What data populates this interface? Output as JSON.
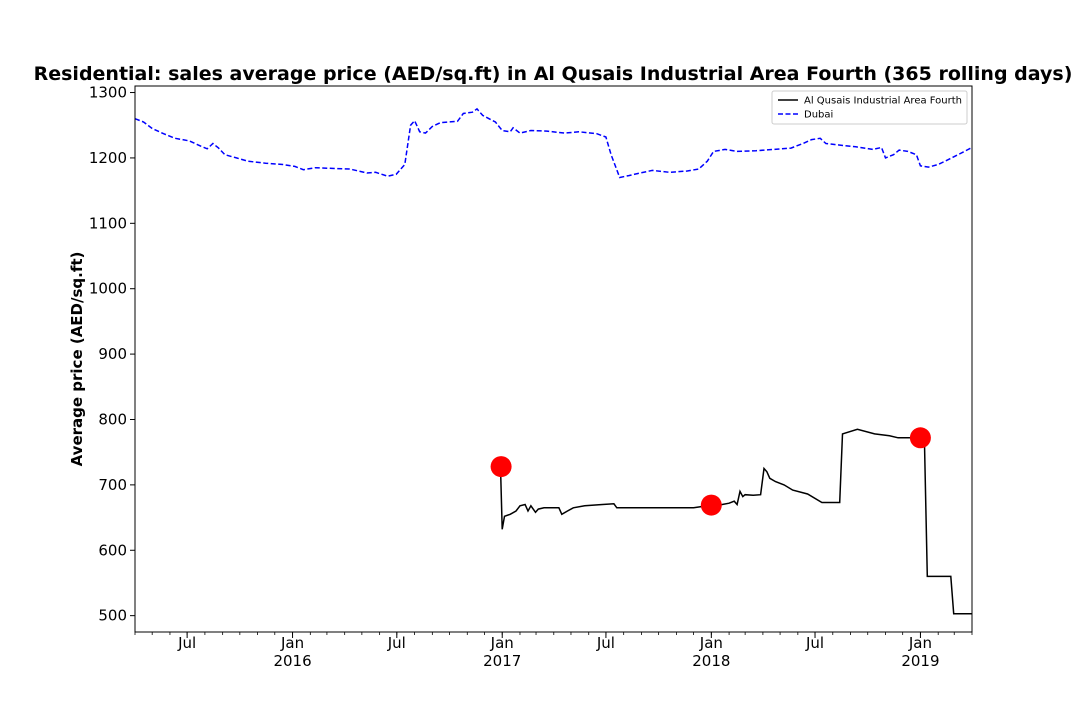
{
  "chart_data": {
    "type": "line",
    "title": "Residential: sales average price (AED/sq.ft) in Al Qusais Industrial Area Fourth (365 rolling days)",
    "xlabel": "",
    "ylabel": "Average price (AED/sq.ft)",
    "xlim": [
      "2015-04-01",
      "2019-04-01"
    ],
    "ylim": [
      475,
      1310
    ],
    "yticks": [
      500,
      600,
      700,
      800,
      900,
      1000,
      1100,
      1200,
      1300
    ],
    "xticks": [
      {
        "date": "2015-07-01",
        "label": "Jul",
        "sublabel": ""
      },
      {
        "date": "2016-01-01",
        "label": "Jan",
        "sublabel": "2016"
      },
      {
        "date": "2016-07-01",
        "label": "Jul",
        "sublabel": ""
      },
      {
        "date": "2017-01-01",
        "label": "Jan",
        "sublabel": "2017"
      },
      {
        "date": "2017-07-01",
        "label": "Jul",
        "sublabel": ""
      },
      {
        "date": "2018-01-01",
        "label": "Jan",
        "sublabel": "2018"
      },
      {
        "date": "2018-07-01",
        "label": "Jul",
        "sublabel": ""
      },
      {
        "date": "2019-01-01",
        "label": "Jan",
        "sublabel": "2019"
      }
    ],
    "grid": false,
    "legend_position": "top-right",
    "series": [
      {
        "name": "Al Qusais Industrial Area Fourth",
        "color": "#000000",
        "style": "solid",
        "points": [
          [
            "2016-12-29",
            728
          ],
          [
            "2017-01-01",
            632
          ],
          [
            "2017-01-05",
            652
          ],
          [
            "2017-01-15",
            655
          ],
          [
            "2017-01-25",
            660
          ],
          [
            "2017-02-01",
            668
          ],
          [
            "2017-02-10",
            670
          ],
          [
            "2017-02-15",
            660
          ],
          [
            "2017-02-20",
            668
          ],
          [
            "2017-02-28",
            658
          ],
          [
            "2017-03-05",
            663
          ],
          [
            "2017-03-15",
            665
          ],
          [
            "2017-04-10",
            665
          ],
          [
            "2017-04-15",
            655
          ],
          [
            "2017-04-25",
            660
          ],
          [
            "2017-05-05",
            665
          ],
          [
            "2017-05-25",
            668
          ],
          [
            "2017-06-25",
            670
          ],
          [
            "2017-07-15",
            671
          ],
          [
            "2017-07-20",
            665
          ],
          [
            "2017-12-01",
            665
          ],
          [
            "2017-12-25",
            668
          ],
          [
            "2018-01-20",
            670
          ],
          [
            "2018-02-01",
            672
          ],
          [
            "2018-02-10",
            675
          ],
          [
            "2018-02-15",
            670
          ],
          [
            "2018-02-20",
            690
          ],
          [
            "2018-02-25",
            682
          ],
          [
            "2018-03-01",
            685
          ],
          [
            "2018-03-15",
            684
          ],
          [
            "2018-03-28",
            685
          ],
          [
            "2018-04-03",
            725
          ],
          [
            "2018-04-08",
            720
          ],
          [
            "2018-04-13",
            710
          ],
          [
            "2018-04-23",
            705
          ],
          [
            "2018-05-08",
            700
          ],
          [
            "2018-05-23",
            692
          ],
          [
            "2018-06-18",
            686
          ],
          [
            "2018-07-13",
            673
          ],
          [
            "2018-08-13",
            673
          ],
          [
            "2018-08-18",
            778
          ],
          [
            "2018-09-13",
            785
          ],
          [
            "2018-10-13",
            778
          ],
          [
            "2018-11-08",
            775
          ],
          [
            "2018-11-23",
            772
          ],
          [
            "2019-01-01",
            772
          ],
          [
            "2019-01-08",
            770
          ],
          [
            "2019-01-13",
            560
          ],
          [
            "2019-02-23",
            560
          ],
          [
            "2019-02-28",
            503
          ],
          [
            "2019-04-01",
            503
          ]
        ],
        "markers": [
          [
            "2016-12-30",
            728
          ],
          [
            "2018-01-01",
            669
          ],
          [
            "2019-01-01",
            772
          ]
        ]
      },
      {
        "name": "Dubai",
        "color": "#0000ff",
        "style": "dashed",
        "points": [
          [
            "2015-04-01",
            1260
          ],
          [
            "2015-04-16",
            1255
          ],
          [
            "2015-05-01",
            1245
          ],
          [
            "2015-05-21",
            1237
          ],
          [
            "2015-06-10",
            1230
          ],
          [
            "2015-07-05",
            1226
          ],
          [
            "2015-07-25",
            1218
          ],
          [
            "2015-08-05",
            1214
          ],
          [
            "2015-08-15",
            1222
          ],
          [
            "2015-08-25",
            1215
          ],
          [
            "2015-09-05",
            1205
          ],
          [
            "2015-09-25",
            1200
          ],
          [
            "2015-10-15",
            1195
          ],
          [
            "2015-11-15",
            1192
          ],
          [
            "2015-12-15",
            1190
          ],
          [
            "2016-01-05",
            1187
          ],
          [
            "2016-01-20",
            1182
          ],
          [
            "2016-02-10",
            1185
          ],
          [
            "2016-03-10",
            1184
          ],
          [
            "2016-04-10",
            1183
          ],
          [
            "2016-04-25",
            1180
          ],
          [
            "2016-05-10",
            1177
          ],
          [
            "2016-05-25",
            1178
          ],
          [
            "2016-06-15",
            1172
          ],
          [
            "2016-06-30",
            1175
          ],
          [
            "2016-07-08",
            1183
          ],
          [
            "2016-07-15",
            1190
          ],
          [
            "2016-07-25",
            1250
          ],
          [
            "2016-08-01",
            1257
          ],
          [
            "2016-08-10",
            1240
          ],
          [
            "2016-08-20",
            1238
          ],
          [
            "2016-09-01",
            1248
          ],
          [
            "2016-09-15",
            1254
          ],
          [
            "2016-10-15",
            1256
          ],
          [
            "2016-10-25",
            1268
          ],
          [
            "2016-11-10",
            1270
          ],
          [
            "2016-11-18",
            1275
          ],
          [
            "2016-11-28",
            1265
          ],
          [
            "2016-12-20",
            1255
          ],
          [
            "2017-01-01",
            1242
          ],
          [
            "2017-01-15",
            1240
          ],
          [
            "2017-01-20",
            1246
          ],
          [
            "2017-02-01",
            1238
          ],
          [
            "2017-02-20",
            1242
          ],
          [
            "2017-03-20",
            1241
          ],
          [
            "2017-04-20",
            1238
          ],
          [
            "2017-05-15",
            1240
          ],
          [
            "2017-06-15",
            1237
          ],
          [
            "2017-07-01",
            1232
          ],
          [
            "2017-07-10",
            1205
          ],
          [
            "2017-07-25",
            1170
          ],
          [
            "2017-08-10",
            1173
          ],
          [
            "2017-08-25",
            1176
          ],
          [
            "2017-09-20",
            1181
          ],
          [
            "2017-10-20",
            1178
          ],
          [
            "2017-11-20",
            1180
          ],
          [
            "2017-12-10",
            1183
          ],
          [
            "2017-12-25",
            1195
          ],
          [
            "2018-01-05",
            1210
          ],
          [
            "2018-01-25",
            1213
          ],
          [
            "2018-02-15",
            1210
          ],
          [
            "2018-03-20",
            1211
          ],
          [
            "2018-04-20",
            1213
          ],
          [
            "2018-05-20",
            1215
          ],
          [
            "2018-06-10",
            1222
          ],
          [
            "2018-06-25",
            1228
          ],
          [
            "2018-07-10",
            1230
          ],
          [
            "2018-07-20",
            1222
          ],
          [
            "2018-08-10",
            1220
          ],
          [
            "2018-09-10",
            1217
          ],
          [
            "2018-10-10",
            1213
          ],
          [
            "2018-10-25",
            1216
          ],
          [
            "2018-11-01",
            1200
          ],
          [
            "2018-11-15",
            1205
          ],
          [
            "2018-11-25",
            1212
          ],
          [
            "2018-12-10",
            1210
          ],
          [
            "2018-12-25",
            1205
          ],
          [
            "2019-01-01",
            1188
          ],
          [
            "2019-01-15",
            1186
          ],
          [
            "2019-02-01",
            1190
          ],
          [
            "2019-02-20",
            1198
          ],
          [
            "2019-03-10",
            1206
          ],
          [
            "2019-04-01",
            1216
          ]
        ]
      }
    ]
  }
}
